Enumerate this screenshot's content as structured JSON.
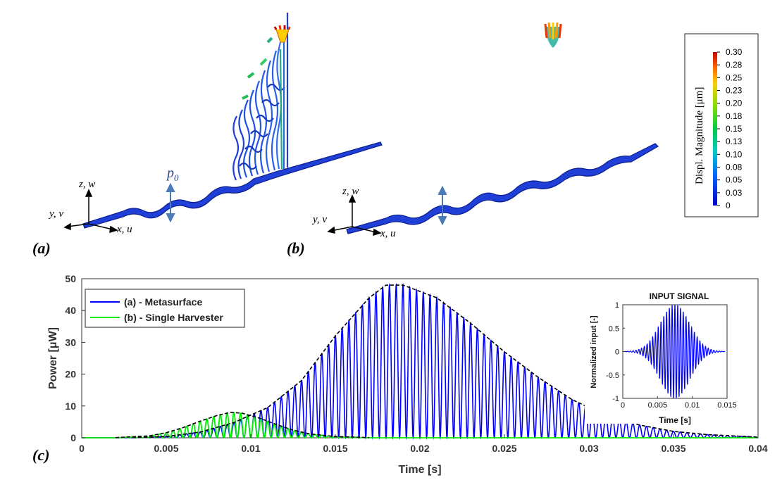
{
  "panels": {
    "a_label": "(a)",
    "b_label": "(b)",
    "c_label": "(c)",
    "axes_a": {
      "z": "z, w",
      "y": "y, v",
      "x": "x, u",
      "load": "p"
    },
    "axes_b": {
      "z": "z, w",
      "y": "y, v",
      "x": "x, u"
    }
  },
  "colorbar": {
    "title": "Displ. Magnitude [μm]",
    "ticks": [
      "0.30",
      "0.28",
      "0.25",
      "0.23",
      "0.20",
      "0.18",
      "0.15",
      "0.13",
      "0.10",
      "0.08",
      "0.05",
      "0.03",
      "0"
    ],
    "range": [
      0,
      0.3
    ]
  },
  "chart_data": [
    {
      "type": "line",
      "title": "",
      "xlabel": "Time [s]",
      "ylabel": "Power [μW]",
      "xlim": [
        0,
        0.04
      ],
      "ylim": [
        0,
        50
      ],
      "xticks": [
        "0",
        "0.005",
        "0.01",
        "0.015",
        "0.02",
        "0.025",
        "0.03",
        "0.035",
        "0.04"
      ],
      "yticks": [
        "0",
        "10",
        "20",
        "30",
        "40",
        "50"
      ],
      "legend_position": "top-left",
      "series": [
        {
          "name": "(a) - Metasurface",
          "color": "#0000ff",
          "peak_time": 0.0183,
          "peak_value": 48.3,
          "envelope_x": [
            0.003,
            0.005,
            0.007,
            0.009,
            0.011,
            0.013,
            0.015,
            0.017,
            0.018,
            0.019,
            0.021,
            0.023,
            0.025,
            0.027,
            0.029,
            0.031,
            0.033,
            0.035,
            0.037,
            0.04
          ],
          "envelope_y": [
            0.05,
            0.4,
            1.8,
            4.8,
            9.5,
            18,
            32,
            44,
            48,
            48,
            44,
            36,
            27,
            19,
            12,
            7,
            4,
            2,
            1,
            0.2
          ]
        },
        {
          "name": "(b) - Single Harvester",
          "color": "#00ee00",
          "peak_time": 0.0088,
          "peak_value": 8.0,
          "envelope_x": [
            0.002,
            0.004,
            0.005,
            0.006,
            0.007,
            0.008,
            0.0088,
            0.0095,
            0.0105,
            0.0115,
            0.0125,
            0.0135,
            0.015,
            0.017
          ],
          "envelope_y": [
            0.05,
            0.6,
            1.6,
            3.2,
            5.2,
            7.0,
            8.0,
            7.7,
            6.2,
            4.2,
            2.4,
            1.2,
            0.4,
            0.05
          ]
        }
      ],
      "envelope_style": "dashed black"
    },
    {
      "type": "line",
      "title": "INPUT SIGNAL",
      "xlabel": "Time [s]",
      "ylabel": "Normalized input  [-]",
      "xlim": [
        0,
        0.015
      ],
      "ylim": [
        -1,
        1
      ],
      "xticks": [
        "0",
        "0.005",
        "0.01",
        "0.015"
      ],
      "yticks": [
        "1",
        "0.5",
        "0",
        "-0.5",
        "-1"
      ],
      "series": [
        {
          "color": "#0000ff",
          "center": 0.0075,
          "frequency": 2500,
          "shape": "gaussian-windowed sine"
        }
      ]
    }
  ]
}
